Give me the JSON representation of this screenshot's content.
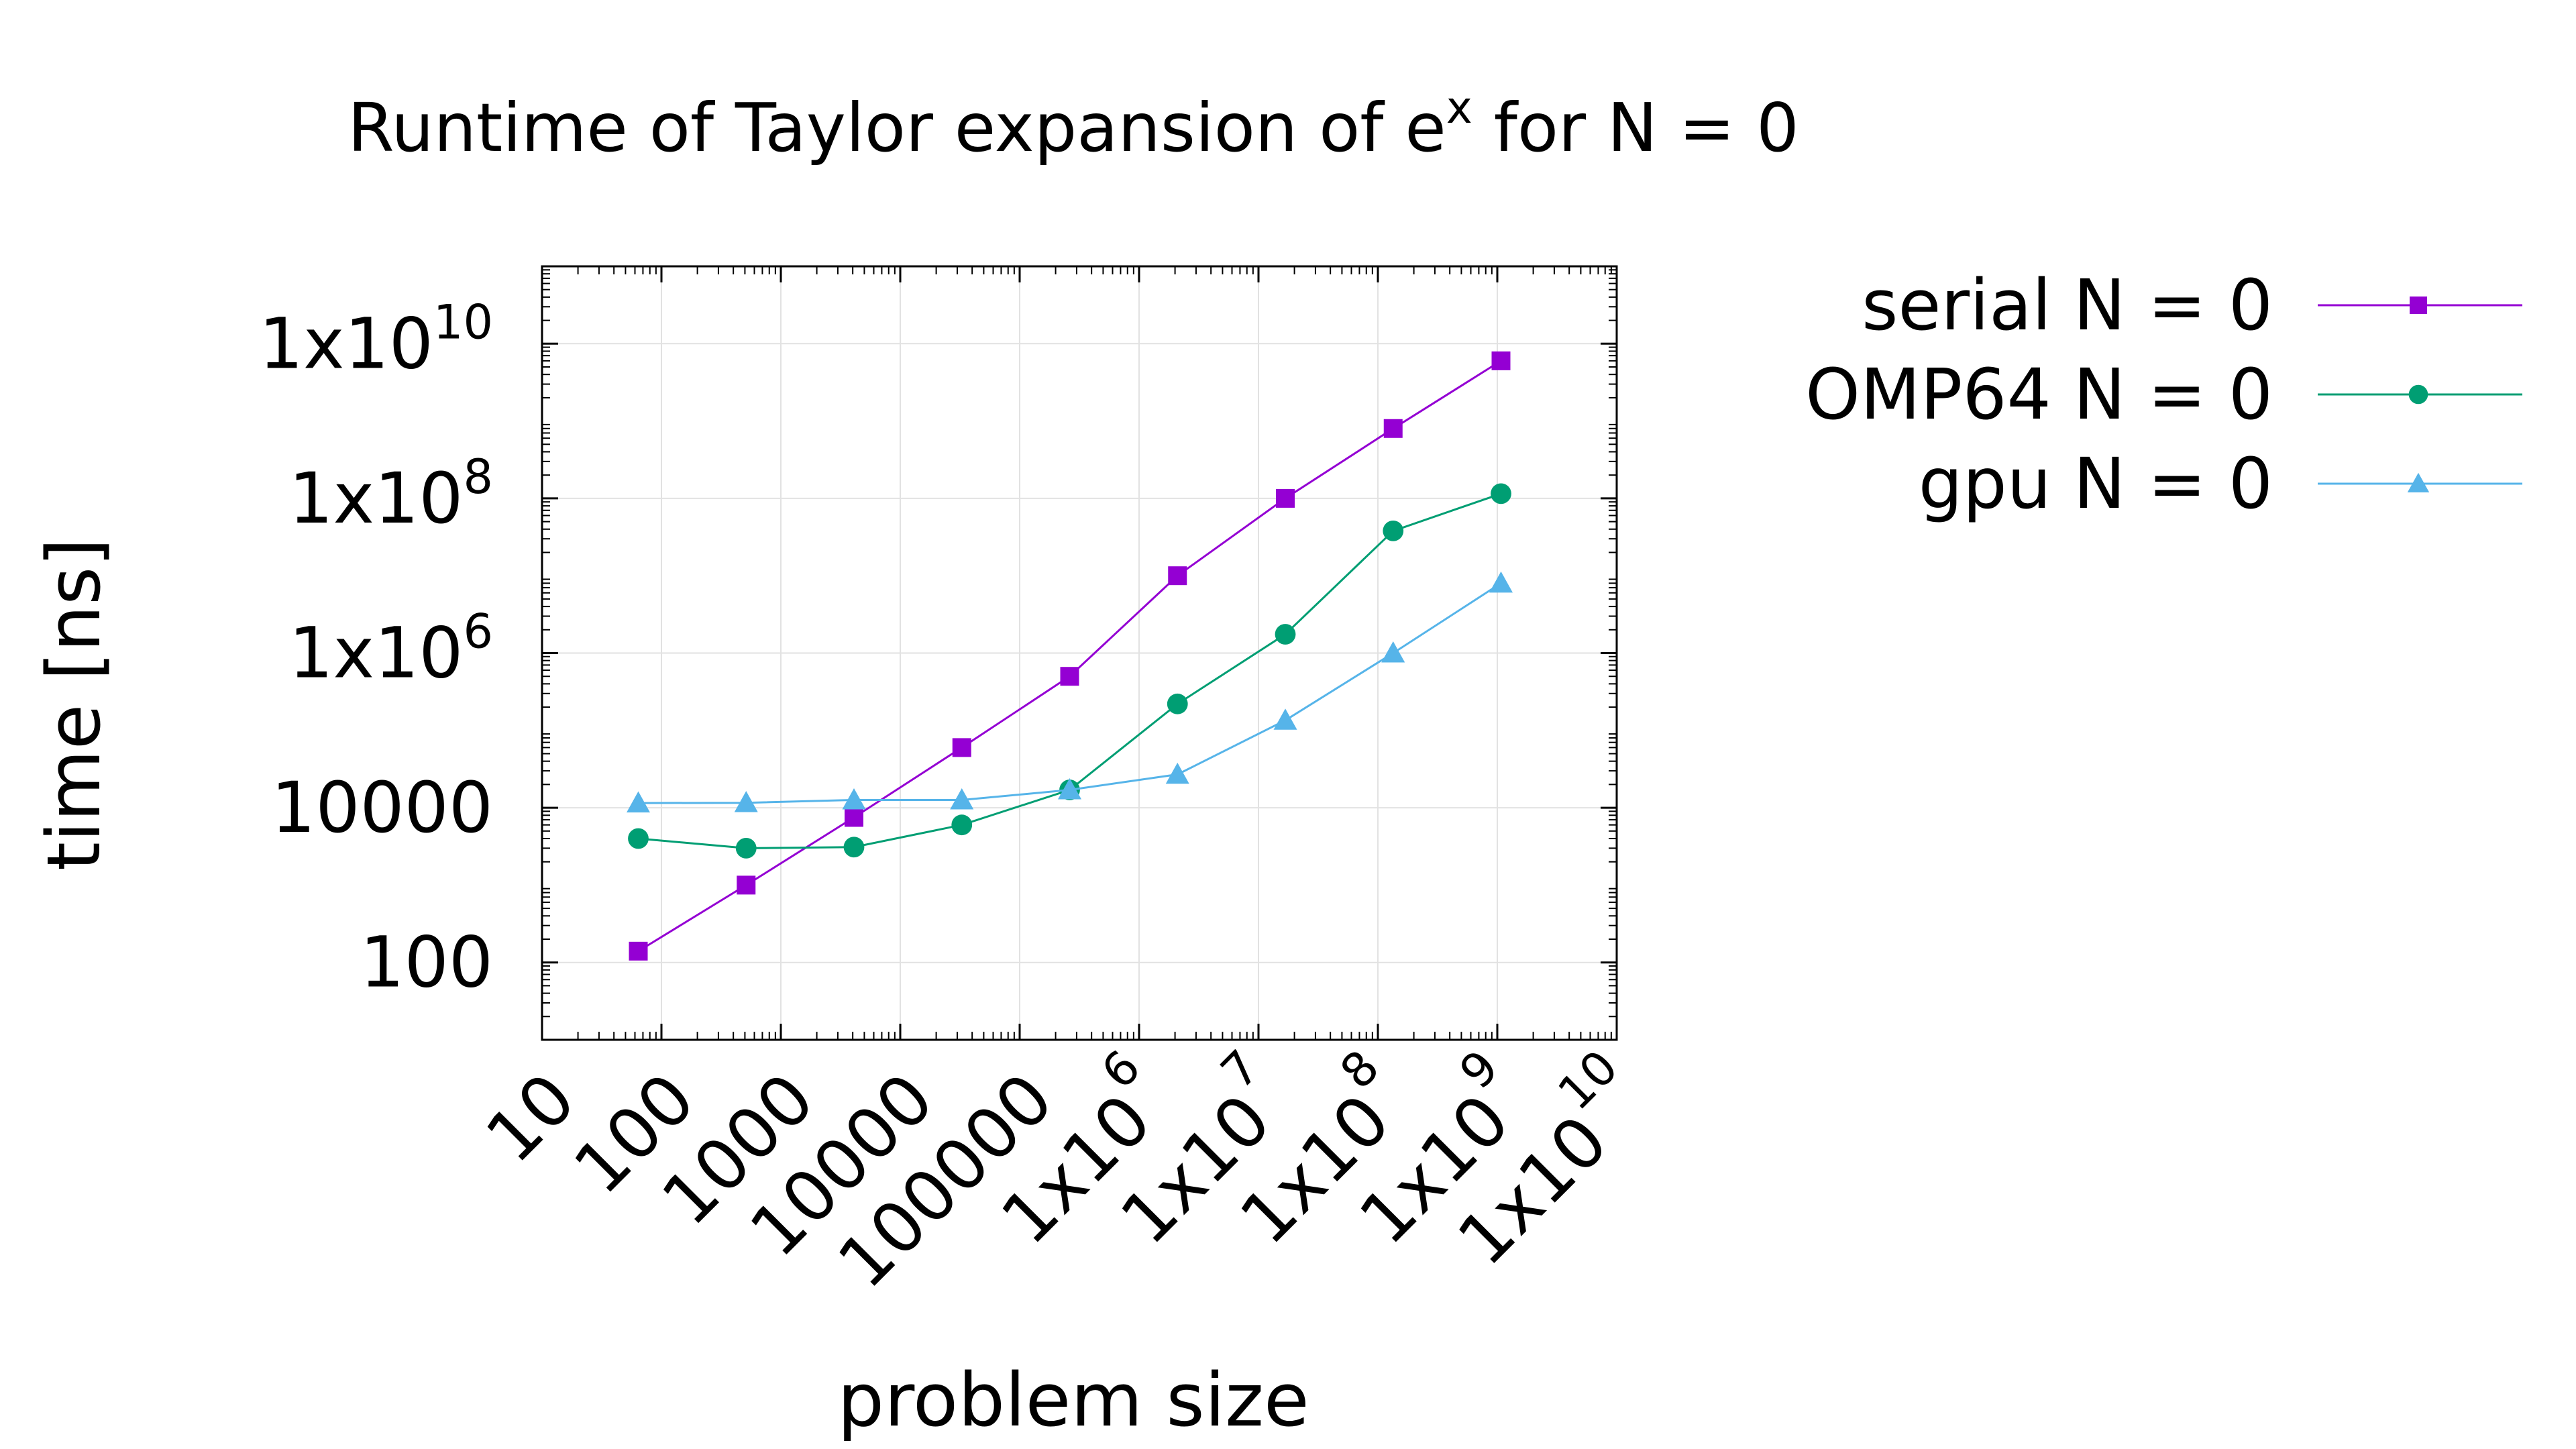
{
  "chart_data": {
    "type": "line",
    "title": {
      "base": "Runtime of Taylor expansion of e",
      "sup": "x",
      "tail": " for N = 0"
    },
    "xlabel": "problem size",
    "ylabel": "time [ns]",
    "x_scale": "log",
    "y_scale": "log",
    "xlim": [
      10,
      10000000000
    ],
    "ylim": [
      10,
      100000000000
    ],
    "grid": true,
    "legend_position": "right",
    "x_ticks": [
      {
        "value": 10,
        "base": "10",
        "sup": ""
      },
      {
        "value": 100,
        "base": "100",
        "sup": ""
      },
      {
        "value": 1000,
        "base": "1000",
        "sup": ""
      },
      {
        "value": 10000,
        "base": "10000",
        "sup": ""
      },
      {
        "value": 100000,
        "base": "100000",
        "sup": ""
      },
      {
        "value": 1000000,
        "base": "1x10",
        "sup": "6"
      },
      {
        "value": 10000000,
        "base": "1x10",
        "sup": "7"
      },
      {
        "value": 100000000,
        "base": "1x10",
        "sup": "8"
      },
      {
        "value": 1000000000,
        "base": "1x10",
        "sup": "9"
      },
      {
        "value": 10000000000,
        "base": "1x10",
        "sup": "10"
      }
    ],
    "y_ticks": [
      {
        "value": 100,
        "base": "100",
        "sup": ""
      },
      {
        "value": 10000,
        "base": "10000",
        "sup": ""
      },
      {
        "value": 1000000,
        "base": "1x10",
        "sup": "6"
      },
      {
        "value": 100000000,
        "base": "1x10",
        "sup": "8"
      },
      {
        "value": 10000000000,
        "base": "1x10",
        "sup": "10"
      }
    ],
    "x": [
      64,
      512,
      4096,
      32768,
      262144,
      2097152,
      16777216,
      134217728,
      1073741824
    ],
    "series": [
      {
        "name": "serial N = 0",
        "color": "#9400d3",
        "marker": "square",
        "values": [
          140,
          1000,
          7500,
          60000,
          500000,
          10000000,
          100000000,
          800000000,
          6000000000
        ]
      },
      {
        "name": "OMP64 N = 0",
        "color": "#009e73",
        "marker": "circle",
        "values": [
          4000,
          3000,
          3100,
          6000,
          17000,
          220000,
          1750000,
          38000000,
          115000000
        ]
      },
      {
        "name": "gpu N = 0",
        "color": "#56b4e9",
        "marker": "triangle",
        "values": [
          11500,
          11600,
          12600,
          12600,
          17000,
          27000,
          135000,
          1000000,
          8000000
        ]
      }
    ]
  }
}
